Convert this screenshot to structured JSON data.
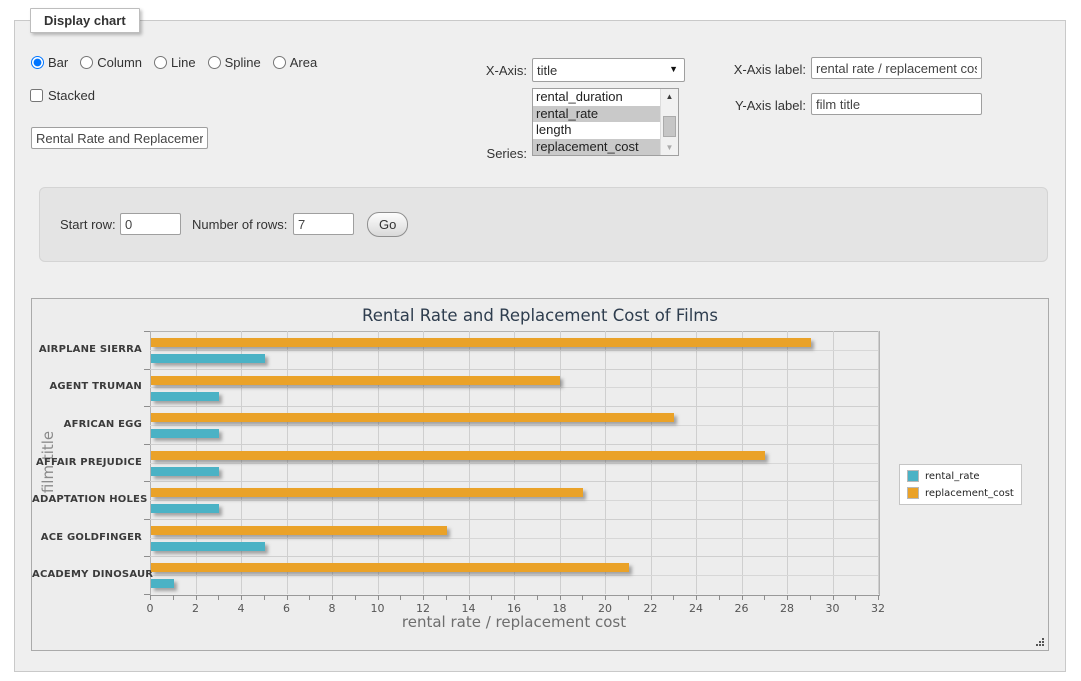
{
  "display_panel": {
    "legend": "Display chart"
  },
  "chart_type": {
    "radios": [
      {
        "label": "Bar",
        "checked": true
      },
      {
        "label": "Column",
        "checked": false
      },
      {
        "label": "Line",
        "checked": false
      },
      {
        "label": "Spline",
        "checked": false
      },
      {
        "label": "Area",
        "checked": false
      }
    ],
    "stacked_label": "Stacked",
    "stacked_checked": false,
    "chart_title_input_value": "Rental Rate and Replacemer"
  },
  "axis_controls": {
    "x_axis_caption": "X-Axis:",
    "x_axis_selected": "title",
    "series_caption": "Series:",
    "series_options": [
      {
        "label": "rental_duration",
        "selected": false
      },
      {
        "label": "rental_rate",
        "selected": true
      },
      {
        "label": "length",
        "selected": false
      },
      {
        "label": "replacement_cost",
        "selected": true
      }
    ],
    "x_label_caption": "X-Axis label:",
    "x_label_value": "rental rate / replacement cost",
    "y_label_caption": "Y-Axis label:",
    "y_label_value": "film title"
  },
  "row_controls": {
    "start_row_caption": "Start row:",
    "start_row_value": "0",
    "num_rows_caption": "Number of rows:",
    "num_rows_value": "7",
    "go_label": "Go"
  },
  "chart_data": {
    "type": "bar",
    "orientation": "horizontal",
    "title": "Rental Rate and Replacement Cost of Films",
    "xlabel": "rental rate / replacement cost",
    "ylabel": "film title",
    "xlim": [
      0,
      32
    ],
    "x_tick_step_labeled": 2,
    "x_tick_step_minor": 1,
    "grid": true,
    "legend_position": "right",
    "categories": [
      "AIRPLANE SIERRA",
      "AGENT TRUMAN",
      "AFRICAN EGG",
      "AFFAIR PREJUDICE",
      "ADAPTATION HOLES",
      "ACE GOLDFINGER",
      "ACADEMY DINOSAUR"
    ],
    "series": [
      {
        "name": "rental_rate",
        "color": "#4bb2c5",
        "values": [
          4.99,
          2.99,
          2.99,
          2.99,
          2.99,
          4.99,
          0.99
        ]
      },
      {
        "name": "replacement_cost",
        "color": "#EAA228",
        "values": [
          28.99,
          17.99,
          22.99,
          26.99,
          18.99,
          12.99,
          20.99
        ]
      }
    ],
    "bar_order_top_to_bottom": [
      "replacement_cost",
      "rental_rate"
    ]
  },
  "colors": {
    "fieldset_bg": "#efefef",
    "rows_panel_bg": "#e4e4e4",
    "chart_bg": "#ededed",
    "grid_line": "#cfcfcf",
    "selection_bg": "#c9c9c9",
    "series_teal": "#4bb2c5",
    "series_orange": "#EAA228"
  }
}
